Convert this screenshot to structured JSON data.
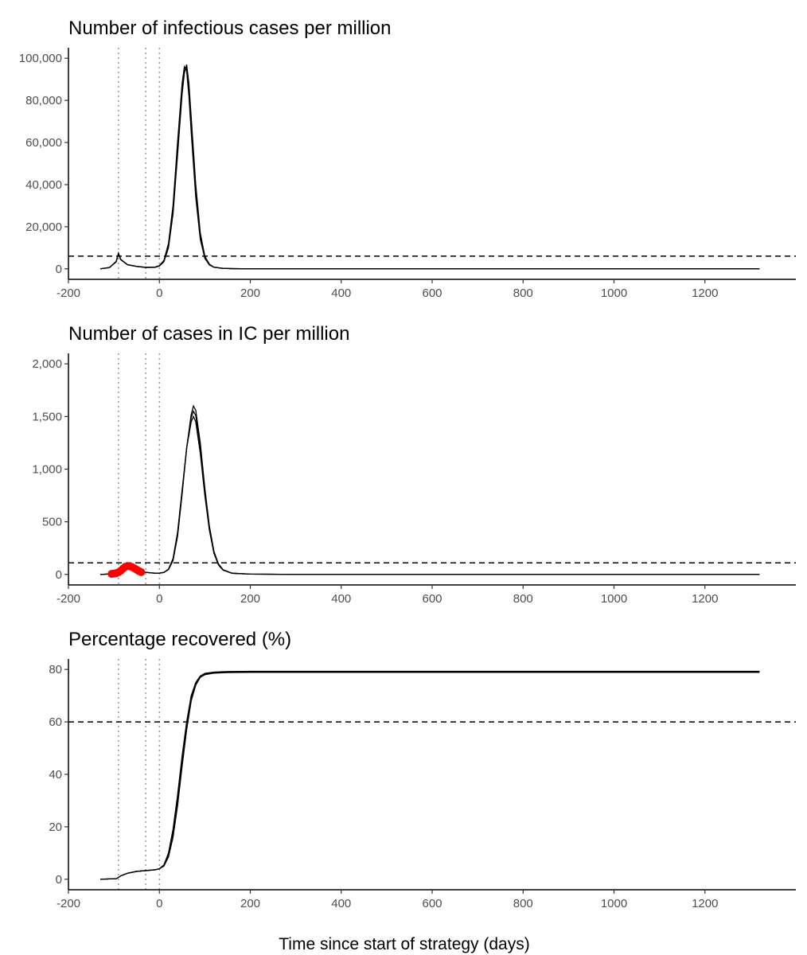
{
  "chart_data": [
    {
      "type": "line",
      "title": "Number of infectious cases per million",
      "xlim": [
        -200,
        1400
      ],
      "ylim": [
        -5000,
        105000
      ],
      "x_ticks": [
        "-200",
        "0",
        "200",
        "400",
        "600",
        "800",
        "1000",
        "1200"
      ],
      "y_ticks": [
        "0",
        "20,000",
        "40,000",
        "60,000",
        "80,000",
        "100,000"
      ],
      "y_tick_values": [
        0,
        20000,
        40000,
        60000,
        80000,
        100000
      ],
      "threshold": 6000,
      "vlines": [
        -90,
        -30,
        0
      ],
      "series": [
        {
          "x": [
            -130,
            -110,
            -95,
            -90,
            -85,
            -70,
            -50,
            -30,
            -10,
            0,
            10,
            20,
            30,
            40,
            50,
            55,
            60,
            65,
            70,
            80,
            90,
            100,
            110,
            120,
            140,
            160,
            200,
            300,
            600,
            1000,
            1320
          ],
          "y": [
            0,
            600,
            3500,
            7500,
            4500,
            2000,
            1200,
            700,
            800,
            1500,
            4000,
            12000,
            30000,
            60000,
            88000,
            96000,
            94000,
            82000,
            65000,
            34000,
            14000,
            5000,
            1800,
            700,
            200,
            80,
            20,
            5,
            0,
            0,
            0
          ]
        },
        {
          "x": [
            -130,
            -110,
            -95,
            -90,
            -85,
            -70,
            -50,
            -30,
            -10,
            0,
            10,
            20,
            30,
            40,
            50,
            55,
            60,
            65,
            70,
            80,
            90,
            100,
            110,
            120,
            140,
            160,
            200,
            300,
            600,
            1000,
            1320
          ],
          "y": [
            0,
            550,
            3300,
            7200,
            4300,
            1900,
            1100,
            650,
            700,
            1300,
            3300,
            10000,
            26000,
            54000,
            83000,
            93000,
            97000,
            88000,
            72000,
            40000,
            17000,
            6000,
            2200,
            800,
            220,
            90,
            20,
            5,
            0,
            0,
            0
          ]
        },
        {
          "x": [
            -130,
            -110,
            -95,
            -90,
            -85,
            -70,
            -50,
            -30,
            -10,
            0,
            10,
            20,
            30,
            40,
            50,
            55,
            60,
            65,
            70,
            80,
            90,
            100,
            110,
            120,
            140,
            160,
            200,
            300,
            600,
            1000,
            1320
          ],
          "y": [
            0,
            580,
            3400,
            7300,
            4400,
            1950,
            1150,
            680,
            750,
            1400,
            3700,
            11000,
            28000,
            57000,
            85000,
            94000,
            95500,
            85000,
            68000,
            37000,
            15500,
            5500,
            2000,
            750,
            210,
            85,
            20,
            5,
            0,
            0,
            0
          ]
        }
      ]
    },
    {
      "type": "line",
      "title": "Number of cases in IC per million",
      "xlim": [
        -200,
        1400
      ],
      "ylim": [
        -100,
        2100
      ],
      "x_ticks": [
        "-200",
        "0",
        "200",
        "400",
        "600",
        "800",
        "1000",
        "1200"
      ],
      "y_ticks": [
        "0",
        "500",
        "1,000",
        "1,500",
        "2,000"
      ],
      "y_tick_values": [
        0,
        500,
        1000,
        1500,
        2000
      ],
      "threshold": 110,
      "vlines": [
        -90,
        -30,
        0
      ],
      "observed_points": {
        "x": [
          -105,
          -100,
          -95,
          -90,
          -85,
          -80,
          -75,
          -70,
          -65,
          -60,
          -55,
          -50,
          -45,
          -40
        ],
        "y": [
          5,
          8,
          12,
          20,
          35,
          55,
          72,
          80,
          78,
          70,
          58,
          45,
          32,
          22
        ]
      },
      "series": [
        {
          "x": [
            -130,
            -105,
            -90,
            -80,
            -70,
            -60,
            -50,
            -40,
            -30,
            -20,
            -10,
            0,
            10,
            20,
            30,
            40,
            50,
            60,
            70,
            75,
            80,
            90,
            100,
            110,
            120,
            130,
            140,
            160,
            200,
            300,
            600,
            1000,
            1320
          ],
          "y": [
            0,
            5,
            20,
            40,
            60,
            55,
            40,
            28,
            20,
            15,
            12,
            12,
            20,
            50,
            150,
            400,
            800,
            1200,
            1450,
            1500,
            1450,
            1150,
            750,
            420,
            200,
            90,
            40,
            10,
            3,
            0,
            0,
            0,
            0
          ]
        },
        {
          "x": [
            -130,
            -105,
            -90,
            -80,
            -70,
            -60,
            -50,
            -40,
            -30,
            -20,
            -10,
            0,
            10,
            20,
            30,
            40,
            50,
            60,
            70,
            75,
            80,
            90,
            100,
            110,
            120,
            130,
            140,
            160,
            200,
            300,
            600,
            1000,
            1320
          ],
          "y": [
            0,
            5,
            20,
            40,
            60,
            55,
            40,
            28,
            20,
            15,
            12,
            12,
            18,
            45,
            130,
            360,
            760,
            1200,
            1520,
            1600,
            1560,
            1250,
            820,
            460,
            220,
            100,
            45,
            12,
            3,
            0,
            0,
            0,
            0
          ]
        },
        {
          "x": [
            -130,
            -105,
            -90,
            -80,
            -70,
            -60,
            -50,
            -40,
            -30,
            -20,
            -10,
            0,
            10,
            20,
            30,
            40,
            50,
            60,
            70,
            75,
            80,
            90,
            100,
            110,
            120,
            130,
            140,
            160,
            200,
            300,
            600,
            1000,
            1320
          ],
          "y": [
            0,
            5,
            20,
            40,
            60,
            55,
            40,
            28,
            20,
            15,
            12,
            12,
            19,
            48,
            140,
            380,
            780,
            1200,
            1490,
            1550,
            1510,
            1200,
            790,
            440,
            210,
            95,
            42,
            11,
            3,
            0,
            0,
            0,
            0
          ]
        }
      ]
    },
    {
      "type": "line",
      "title": "Percentage recovered (%)",
      "xlim": [
        -200,
        1400
      ],
      "ylim": [
        -4,
        84
      ],
      "x_ticks": [
        "-200",
        "0",
        "200",
        "400",
        "600",
        "800",
        "1000",
        "1200"
      ],
      "y_ticks": [
        "0",
        "20",
        "40",
        "60",
        "80"
      ],
      "y_tick_values": [
        0,
        20,
        40,
        60,
        80
      ],
      "threshold": 60,
      "vlines": [
        -90,
        -30,
        0
      ],
      "xlabel": "Time since start of strategy (days)",
      "series": [
        {
          "x": [
            -130,
            -95,
            -90,
            -85,
            -70,
            -50,
            -30,
            -10,
            0,
            10,
            20,
            30,
            40,
            50,
            60,
            70,
            80,
            90,
            100,
            120,
            150,
            200,
            300,
            600,
            1000,
            1320
          ],
          "y": [
            0,
            0.2,
            0.7,
            1.3,
            2.3,
            3.0,
            3.3,
            3.6,
            4.0,
            5.5,
            10,
            19,
            32,
            47,
            60,
            70,
            75,
            77.5,
            78.5,
            79,
            79.2,
            79.3,
            79.3,
            79.3,
            79.3,
            79.3
          ]
        },
        {
          "x": [
            -130,
            -95,
            -90,
            -85,
            -70,
            -50,
            -30,
            -10,
            0,
            10,
            20,
            30,
            40,
            50,
            60,
            70,
            80,
            90,
            100,
            120,
            150,
            200,
            300,
            600,
            1000,
            1320
          ],
          "y": [
            0,
            0.2,
            0.7,
            1.3,
            2.3,
            3.0,
            3.3,
            3.6,
            4.0,
            5.0,
            8.5,
            16,
            28,
            43,
            57,
            68,
            74,
            77,
            78,
            78.6,
            78.8,
            78.9,
            78.9,
            78.9,
            78.9,
            78.9
          ]
        },
        {
          "x": [
            -130,
            -95,
            -90,
            -85,
            -70,
            -50,
            -30,
            -10,
            0,
            10,
            20,
            30,
            40,
            50,
            60,
            70,
            80,
            90,
            100,
            120,
            150,
            200,
            300,
            600,
            1000,
            1320
          ],
          "y": [
            0,
            0.2,
            0.7,
            1.3,
            2.3,
            3.0,
            3.3,
            3.6,
            4.0,
            5.2,
            9.2,
            17.5,
            30,
            45,
            58.5,
            69,
            74.5,
            77.2,
            78.2,
            78.8,
            79,
            79.1,
            79.1,
            79.1,
            79.1,
            79.1
          ]
        }
      ]
    }
  ],
  "colors": {
    "line": "#000000",
    "observed": "#ff0000",
    "vline": "#999999",
    "axis": "#000000",
    "tick_text": "#4d4d4d"
  }
}
